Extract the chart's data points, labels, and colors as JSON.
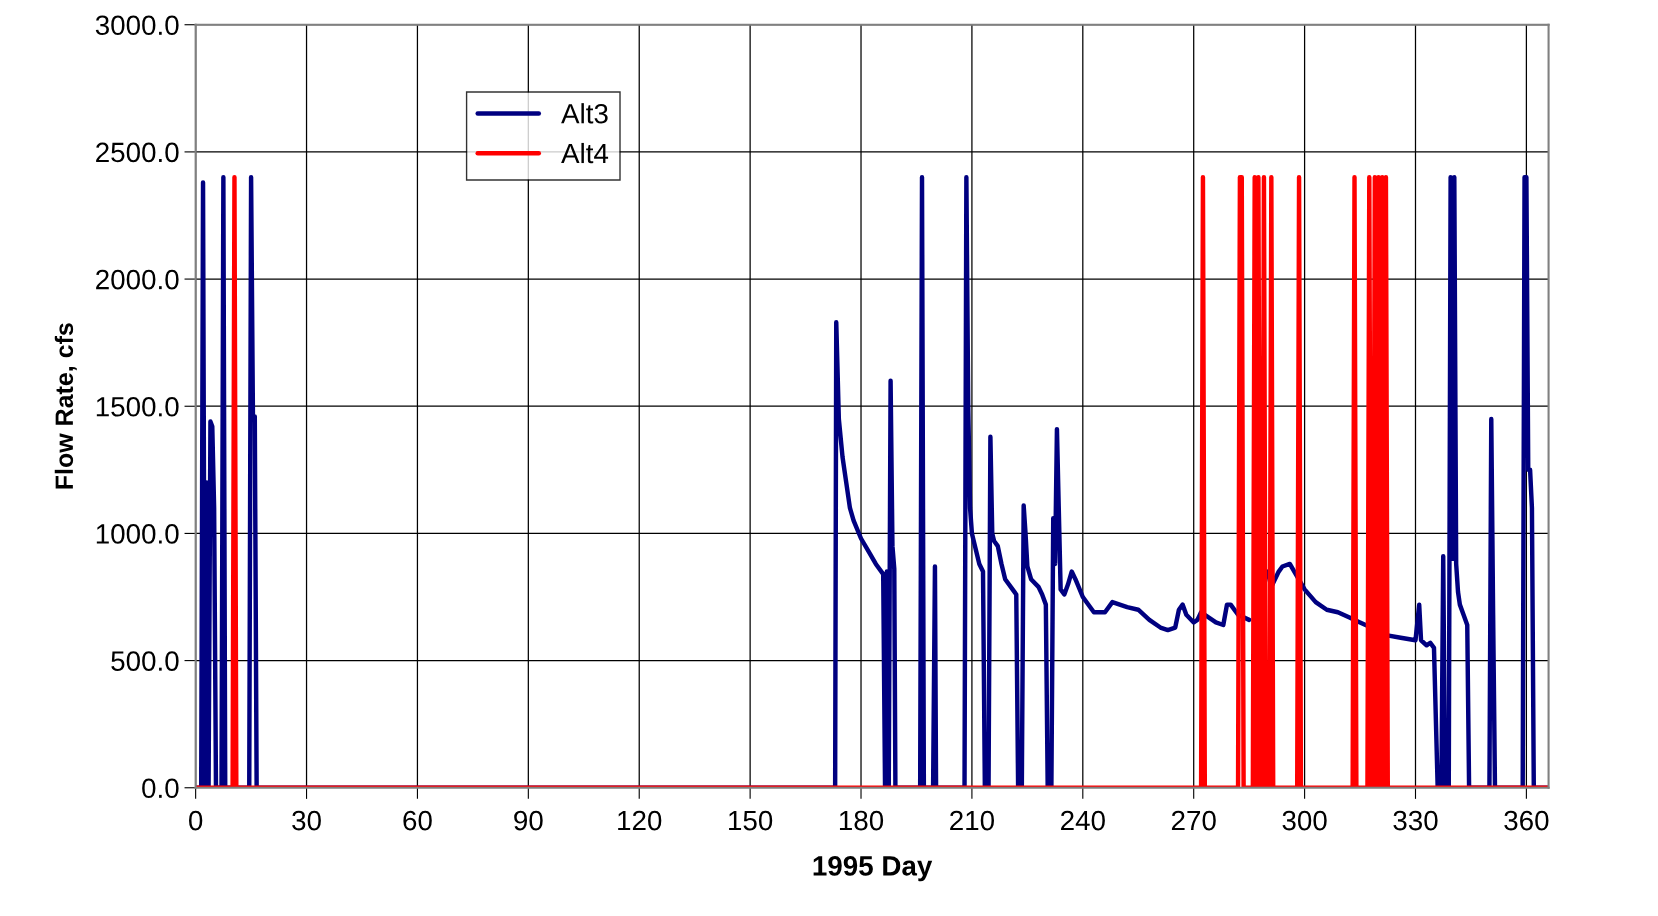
{
  "chart_data": {
    "type": "line",
    "xlabel": "1995 Day",
    "ylabel": "Flow Rate, cfs",
    "xlim": [
      0,
      366
    ],
    "xticks": [
      0,
      30,
      60,
      90,
      120,
      150,
      180,
      210,
      240,
      270,
      300,
      330,
      360
    ],
    "ylim": [
      0,
      3000
    ],
    "yticks": [
      {
        "value": 0,
        "label": "0.0"
      },
      {
        "value": 500,
        "label": "500.0"
      },
      {
        "value": 1000,
        "label": "1000.0"
      },
      {
        "value": 1500,
        "label": "1500.0"
      },
      {
        "value": 2000,
        "label": "2000.0"
      },
      {
        "value": 2500,
        "label": "2500.0"
      },
      {
        "value": 3000,
        "label": "3000.0"
      }
    ],
    "grid": true,
    "legend": "top left",
    "marker": "none",
    "line_style": "solid",
    "series": [
      {
        "name": "Alt3",
        "color": "#000080",
        "x": [
          0,
          1.5,
          2,
          2.5,
          3,
          3.5,
          4,
          4.5,
          5,
          5.5,
          7,
          7.5,
          8,
          14.5,
          15,
          15.5,
          16,
          16.5,
          173,
          173.3,
          174,
          175,
          176,
          177,
          178,
          180,
          182,
          184,
          186,
          186.5,
          187,
          187.5,
          188,
          188.5,
          189,
          189.3,
          196,
          196.5,
          197,
          199.5,
          200,
          200.3,
          208,
          208.5,
          209,
          209.5,
          210,
          212,
          213,
          213.5,
          214.5,
          215,
          215.5,
          216,
          217,
          218,
          219,
          221,
          222,
          222.5,
          223.5,
          224,
          224.5,
          225,
          226,
          228,
          229,
          230,
          230.5,
          231.5,
          232,
          232.5,
          233,
          234,
          235,
          236,
          237,
          238,
          240,
          243,
          246,
          248,
          250,
          252,
          255,
          258,
          261,
          263,
          265,
          266,
          267,
          268,
          270,
          271,
          272,
          276,
          278,
          279,
          280,
          282,
          285,
          287,
          289,
          290,
          291,
          293,
          294,
          296,
          298,
          300,
          303,
          306,
          309,
          312,
          315,
          318,
          320,
          322,
          326,
          330,
          331,
          331.5,
          333,
          334,
          335,
          336,
          337,
          337.5,
          338,
          339,
          339.5,
          340,
          340.5,
          341,
          341.5,
          342,
          343,
          344,
          344.5,
          350,
          350.5,
          351,
          351.5,
          359,
          359.5,
          360,
          360.5,
          361,
          361.5,
          362,
          366
        ],
        "values": [
          0,
          0,
          2380,
          0,
          1200,
          0,
          1440,
          1420,
          1100,
          0,
          0,
          2400,
          0,
          0,
          2400,
          1460,
          1460,
          0,
          0,
          1830,
          1450,
          1300,
          1200,
          1100,
          1050,
          980,
          930,
          880,
          840,
          0,
          850,
          0,
          1600,
          950,
          860,
          0,
          0,
          2400,
          0,
          0,
          870,
          0,
          0,
          2400,
          1500,
          1100,
          1000,
          880,
          850,
          0,
          0,
          1380,
          1000,
          970,
          950,
          880,
          820,
          780,
          760,
          0,
          0,
          1110,
          1000,
          870,
          820,
          790,
          760,
          720,
          0,
          0,
          1060,
          880,
          1410,
          780,
          760,
          800,
          850,
          820,
          750,
          690,
          690,
          730,
          720,
          710,
          700,
          660,
          630,
          620,
          630,
          700,
          720,
          680,
          650,
          660,
          690,
          650,
          640,
          720,
          720,
          680,
          660,
          null,
          null,
          850,
          790,
          850,
          870,
          880,
          830,
          780,
          730,
          700,
          690,
          670,
          650,
          630,
          null,
          600,
          590,
          580,
          720,
          580,
          560,
          570,
          550,
          0,
          0,
          910,
          0,
          0,
          2400,
          900,
          2400,
          880,
          770,
          720,
          680,
          640,
          0,
          0,
          1450,
          680,
          0,
          0,
          2400,
          2400,
          1250,
          1250,
          1100,
          0,
          0
        ]
      },
      {
        "name": "Alt4",
        "color": "#ff0000",
        "x": [
          0,
          10,
          10.5,
          11,
          272,
          272.5,
          273,
          282,
          282.5,
          283,
          283.5,
          286,
          286.5,
          287,
          287.5,
          288,
          288.5,
          289,
          289.5,
          290.5,
          291,
          291.5,
          298,
          298.5,
          299,
          313,
          313.5,
          314,
          317,
          317.5,
          318,
          318.5,
          319,
          319.5,
          320,
          320.5,
          321,
          321.5,
          322,
          322.5,
          366
        ],
        "values": [
          0,
          0,
          2400,
          0,
          0,
          2400,
          0,
          0,
          2400,
          2400,
          0,
          0,
          2400,
          0,
          2400,
          0,
          0,
          2400,
          0,
          0,
          2400,
          0,
          0,
          2400,
          0,
          0,
          2400,
          0,
          0,
          2400,
          0,
          0,
          2400,
          0,
          2400,
          0,
          2400,
          0,
          2400,
          0,
          0
        ]
      }
    ]
  }
}
